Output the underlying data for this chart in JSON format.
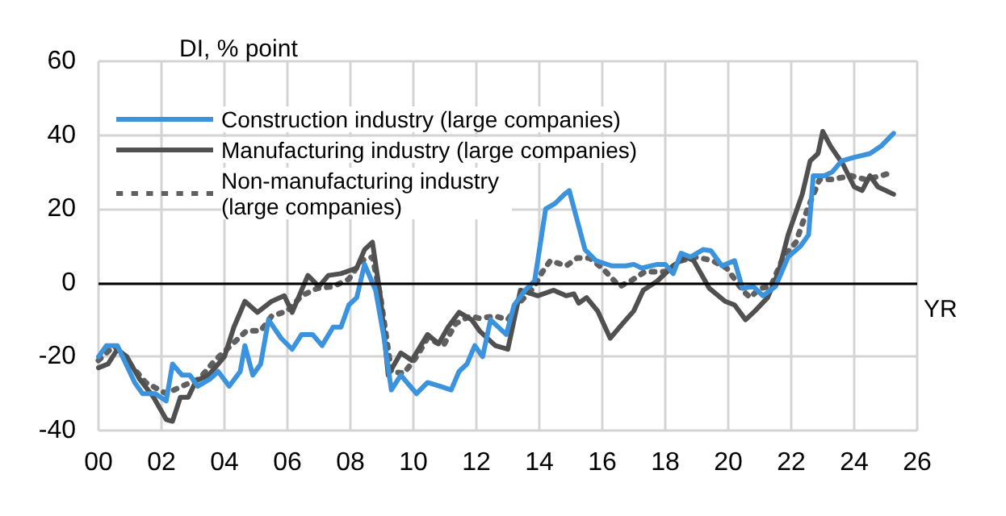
{
  "chart_data": {
    "type": "line",
    "ylabel": "DI, % point",
    "xlabel": "YR",
    "xlim": [
      2000,
      2026
    ],
    "xticks": [
      {
        "value": 2000,
        "label": "00"
      },
      {
        "value": 2002,
        "label": "02"
      },
      {
        "value": 2004,
        "label": "04"
      },
      {
        "value": 2006,
        "label": "06"
      },
      {
        "value": 2008,
        "label": "08"
      },
      {
        "value": 2010,
        "label": "10"
      },
      {
        "value": 2012,
        "label": "12"
      },
      {
        "value": 2014,
        "label": "14"
      },
      {
        "value": 2016,
        "label": "16"
      },
      {
        "value": 2018,
        "label": "18"
      },
      {
        "value": 2020,
        "label": "20"
      },
      {
        "value": 2022,
        "label": "22"
      },
      {
        "value": 2024,
        "label": "24"
      },
      {
        "value": 2026,
        "label": "26"
      }
    ],
    "ylim": [
      -40,
      60
    ],
    "yticks": [
      -40,
      -20,
      0,
      20,
      40,
      60
    ],
    "grid": true,
    "legend": "top left",
    "marker": "none",
    "ref_lines": [
      {
        "axis": "y",
        "value": 0,
        "color": "#000000",
        "line_style": "solid"
      }
    ],
    "series": [
      {
        "name": "Construction industry (large companies)",
        "color": "#3a93dc",
        "line_style": "solid",
        "x": [
          2000,
          2000.25,
          2000.6,
          2001.15,
          2001.4,
          2001.8,
          2002.15,
          2002.35,
          2002.65,
          2002.9,
          2003.15,
          2003.55,
          2003.8,
          2004.15,
          2004.5,
          2004.65,
          2004.9,
          2005.15,
          2005.4,
          2005.8,
          2006.15,
          2006.45,
          2006.8,
          2007.1,
          2007.45,
          2007.7,
          2007.95,
          2008.2,
          2008.45,
          2008.8,
          2009.05,
          2009.3,
          2009.6,
          2010.1,
          2010.45,
          2010.85,
          2011.2,
          2011.45,
          2011.7,
          2011.95,
          2012.2,
          2012.45,
          2012.95,
          2013.2,
          2013.55,
          2013.85,
          2014.2,
          2014.5,
          2014.8,
          2014.95,
          2015.45,
          2015.8,
          2016.3,
          2016.75,
          2017,
          2017.25,
          2017.75,
          2018,
          2018.25,
          2018.5,
          2018.8,
          2019.2,
          2019.45,
          2019.8,
          2020.2,
          2020.45,
          2020.8,
          2021.1,
          2021.5,
          2021.9,
          2022.3,
          2022.55,
          2022.7,
          2023.05,
          2023.3,
          2023.6,
          2024,
          2024.5,
          2024.85,
          2025.25
        ],
        "values": [
          -20,
          -17,
          -17,
          -27,
          -30,
          -30,
          -32,
          -22,
          -25,
          -25,
          -28,
          -26,
          -24,
          -28,
          -24,
          -17,
          -25,
          -22,
          -10,
          -15,
          -18,
          -14,
          -14,
          -17,
          -12,
          -12,
          -6,
          -4,
          5,
          -2,
          -14,
          -29,
          -25,
          -30,
          -27,
          -28,
          -29,
          -24,
          -22,
          -17,
          -20,
          -10,
          -14,
          -6,
          -2,
          0.5,
          20,
          21.5,
          24,
          25,
          9,
          6,
          4.6,
          4.6,
          5,
          4,
          5,
          5,
          2.5,
          8,
          7,
          9,
          8.7,
          4.6,
          6,
          -1.5,
          -1,
          -3.5,
          -1,
          7,
          10,
          13,
          29,
          29,
          30,
          33,
          34,
          35,
          37,
          40.5
        ]
      },
      {
        "name": "Manufacturing industry (large companies)",
        "color": "#505050",
        "line_style": "solid",
        "x": [
          2000,
          2000.3,
          2000.6,
          2000.9,
          2001.3,
          2001.75,
          2002.15,
          2002.35,
          2002.6,
          2002.85,
          2003.1,
          2003.5,
          2004,
          2004.3,
          2004.65,
          2005.05,
          2005.5,
          2005.9,
          2006.15,
          2006.65,
          2007,
          2007.3,
          2007.7,
          2008.2,
          2008.45,
          2008.7,
          2008.95,
          2009.2,
          2009.6,
          2009.95,
          2010.45,
          2010.8,
          2011.1,
          2011.45,
          2011.85,
          2012.1,
          2012.6,
          2013,
          2013.4,
          2013.95,
          2014.45,
          2014.85,
          2015.1,
          2015.25,
          2015.5,
          2015.85,
          2016.25,
          2016.65,
          2017,
          2017.3,
          2017.75,
          2018.25,
          2018.65,
          2018.9,
          2019.4,
          2019.9,
          2020.2,
          2020.55,
          2020.85,
          2021.25,
          2021.6,
          2021.9,
          2022.35,
          2022.6,
          2022.85,
          2023,
          2023.25,
          2023.65,
          2024,
          2024.25,
          2024.5,
          2024.75,
          2025.25
        ],
        "values": [
          -23,
          -22,
          -18,
          -20,
          -26,
          -31,
          -37,
          -37.5,
          -31,
          -31,
          -26.5,
          -25,
          -20,
          -12,
          -5,
          -8,
          -5,
          -3.5,
          -8,
          2,
          -1,
          2,
          2.5,
          4,
          9,
          11,
          -3.5,
          -25,
          -19,
          -21,
          -14,
          -16.5,
          -12,
          -8,
          -10,
          -13,
          -17,
          -18,
          -2,
          -3.5,
          -2,
          -3.5,
          -3,
          -5.5,
          -4,
          -7.6,
          -15,
          -11,
          -7.6,
          -2,
          0.5,
          4.6,
          7,
          6,
          -1.5,
          -5,
          -6,
          -10,
          -7.6,
          -4,
          3,
          13,
          24,
          33,
          35,
          41,
          37,
          32,
          26,
          25,
          29,
          26,
          24
        ]
      },
      {
        "name": "Non-manufacturing industry (large companies)",
        "color": "#606060",
        "line_style": "dotted",
        "x": [
          2000,
          2000.5,
          2001,
          2001.5,
          2002.15,
          2002.65,
          2003.2,
          2003.7,
          2004.2,
          2004.7,
          2005.15,
          2005.5,
          2006,
          2006.45,
          2006.95,
          2007.45,
          2007.95,
          2008.35,
          2008.7,
          2008.95,
          2009.3,
          2009.7,
          2010.1,
          2010.45,
          2010.95,
          2011.35,
          2011.8,
          2012.1,
          2012.6,
          2013,
          2013.3,
          2013.8,
          2014.1,
          2014.35,
          2014.85,
          2015.2,
          2015.6,
          2016,
          2016.55,
          2016.9,
          2017.35,
          2018,
          2018.5,
          2019,
          2019.5,
          2019.95,
          2020.45,
          2020.7,
          2021,
          2021.35,
          2021.75,
          2022.15,
          2022.5,
          2022.9,
          2023.3,
          2023.9,
          2024.35,
          2024.85,
          2025.25
        ],
        "values": [
          -21,
          -17,
          -22,
          -27,
          -30,
          -28,
          -26,
          -21,
          -17,
          -13,
          -13,
          -9,
          -7.6,
          -3.5,
          -1.5,
          -1,
          1,
          6,
          7,
          -3.5,
          -24,
          -24.5,
          -20,
          -15,
          -17,
          -11,
          -9,
          -9.6,
          -9,
          -10,
          -6,
          -1.5,
          3,
          6,
          4.6,
          6.7,
          6.7,
          4,
          -1,
          0.5,
          3,
          3,
          6,
          7,
          6,
          4,
          -2,
          -4,
          -1.5,
          -1,
          7,
          11,
          19.6,
          28,
          28,
          29,
          28,
          29,
          30
        ]
      }
    ]
  }
}
